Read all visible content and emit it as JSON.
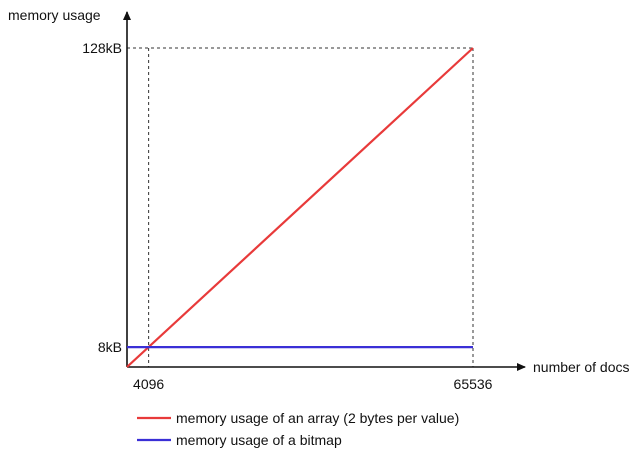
{
  "chart_data": {
    "type": "line",
    "xlabel": "number of docs",
    "ylabel": "memory usage",
    "x_ticks": [
      {
        "value": 4096,
        "label": "4096"
      },
      {
        "value": 65536,
        "label": "65536"
      }
    ],
    "y_ticks": [
      {
        "value": 8,
        "label": "8kB"
      },
      {
        "value": 128,
        "label": "128kB"
      }
    ],
    "xlim": [
      0,
      65536
    ],
    "ylim": [
      0,
      128
    ],
    "grid": false,
    "legend": "bottom",
    "series": [
      {
        "name": "memory usage of an array (2 bytes per value)",
        "color": "#e83a3a",
        "points": [
          [
            0,
            0
          ],
          [
            65536,
            128
          ]
        ]
      },
      {
        "name": "memory usage of a bitmap",
        "color": "#3a2fd6",
        "points": [
          [
            0,
            8
          ],
          [
            65536,
            8
          ]
        ]
      }
    ],
    "guides": [
      {
        "axis": "x",
        "value": 4096
      },
      {
        "axis": "x",
        "value": 65536
      },
      {
        "axis": "y",
        "value": 128
      }
    ]
  }
}
